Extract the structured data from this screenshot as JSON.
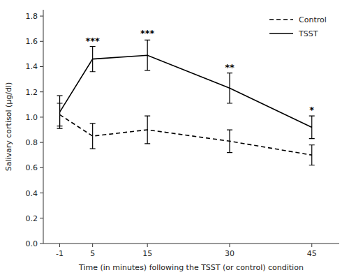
{
  "chart_data": {
    "type": "line",
    "x": [
      -1,
      5,
      15,
      30,
      45
    ],
    "series": [
      {
        "name": "Control",
        "color": "#000000",
        "line_style": "dashed",
        "values": [
          1.02,
          0.85,
          0.9,
          0.81,
          0.7
        ],
        "errors": [
          0.09,
          0.1,
          0.11,
          0.09,
          0.08
        ]
      },
      {
        "name": "TSST",
        "color": "#000000",
        "line_style": "solid",
        "values": [
          1.04,
          1.46,
          1.49,
          1.23,
          0.92
        ],
        "errors": [
          0.13,
          0.1,
          0.12,
          0.12,
          0.09
        ]
      }
    ],
    "annotations": [
      {
        "x": 5,
        "y": 1.58,
        "text": "***"
      },
      {
        "x": 15,
        "y": 1.64,
        "text": "***"
      },
      {
        "x": 30,
        "y": 1.37,
        "text": "**"
      },
      {
        "x": 45,
        "y": 1.03,
        "text": "*"
      }
    ],
    "xlabel": "Time (in minutes) following the TSST (or control) condition",
    "ylabel": "Salivary cortisol (μg/dl)",
    "xlim": [
      -4,
      50
    ],
    "ylim": [
      0,
      1.85
    ],
    "xticks": [
      -1,
      5,
      15,
      30,
      45
    ],
    "yticks": [
      {
        "value": 0,
        "label": "0.0"
      },
      0.2,
      0.4,
      0.6,
      0.8,
      {
        "value": 1,
        "label": "1.0"
      },
      1.2,
      1.4,
      1.6,
      1.8
    ],
    "legend": "upper right",
    "grid": false
  }
}
